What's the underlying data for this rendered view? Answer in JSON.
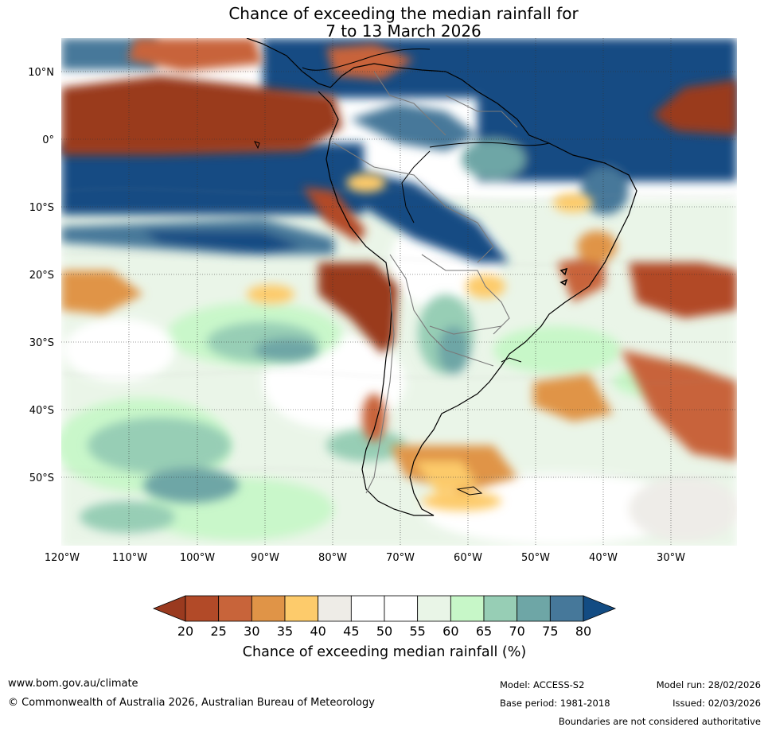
{
  "title": {
    "line1": "Chance of exceeding the median rainfall for",
    "line2": "7 to 13 March 2026"
  },
  "map": {
    "lat_labels": [
      "10°N",
      "0°",
      "10°S",
      "20°S",
      "30°S",
      "40°S",
      "50°S"
    ],
    "lon_labels": [
      "120°W",
      "110°W",
      "100°W",
      "90°W",
      "80°W",
      "70°W",
      "60°W",
      "50°W",
      "40°W",
      "30°W"
    ]
  },
  "colorbar": {
    "ticks": [
      "20",
      "25",
      "30",
      "35",
      "40",
      "45",
      "50",
      "55",
      "60",
      "65",
      "70",
      "75",
      "80"
    ],
    "colors": [
      "#9a3a1f",
      "#b24a28",
      "#c8643a",
      "#e09447",
      "#fdcb6b",
      "#eeece7",
      "#ffffff",
      "#ffffff",
      "#e9f5e7",
      "#c7f7c8",
      "#97ceb5",
      "#6ea6a6",
      "#46789a",
      "#134c83"
    ],
    "label": "Chance of exceeding median rainfall (%)"
  },
  "footer": {
    "website": "www.bom.gov.au/climate",
    "copyright": "© Commonwealth of Australia 2026, Australian Bureau of Meteorology",
    "model": "Model: ACCESS-S2",
    "base_period": "Base period: 1981-2018",
    "model_run": "Model run: 28/02/2026",
    "issued": "Issued: 02/03/2026",
    "disclaimer": "Boundaries are not considered authoritative"
  }
}
